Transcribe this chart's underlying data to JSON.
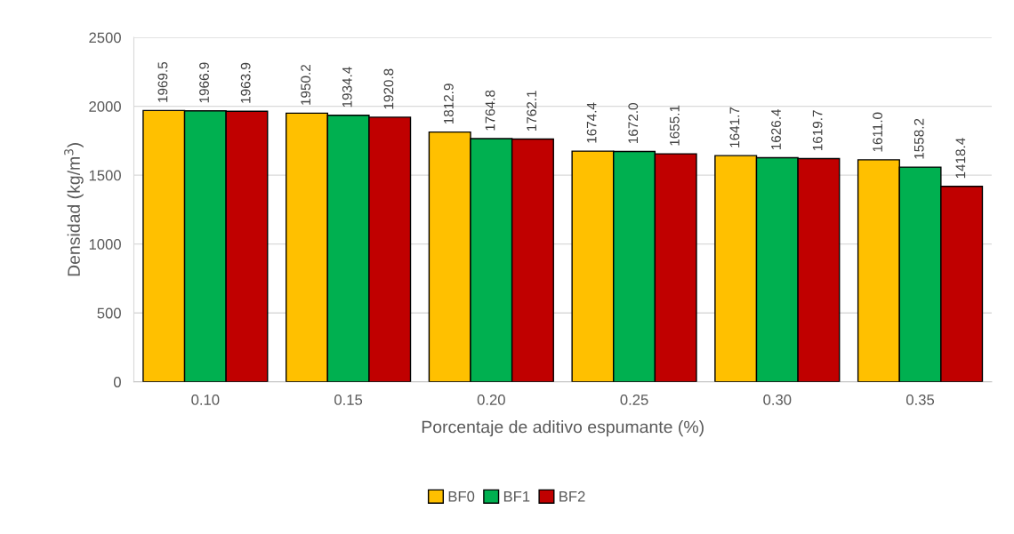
{
  "chart_data": {
    "type": "bar",
    "xlabel": "Porcentaje de aditivo espumante (%)",
    "ylabel": "Densidad (kg/m$^{3}$)",
    "categories": [
      "0.10",
      "0.15",
      "0.20",
      "0.25",
      "0.30",
      "0.35"
    ],
    "series": [
      {
        "name": "BF0",
        "color": "#ffc000",
        "values": [
          1969.5,
          1950.2,
          1812.9,
          1674.4,
          1641.7,
          1611.0
        ],
        "value_labels": [
          "1969.5",
          "1950.2",
          "1812.9",
          "1674.4",
          "1641.7",
          "1611.0"
        ]
      },
      {
        "name": "BF1",
        "color": "#00b050",
        "values": [
          1966.9,
          1934.4,
          1764.8,
          1672.0,
          1626.4,
          1558.2
        ],
        "value_labels": [
          "1966.9",
          "1934.4",
          "1764.8",
          "1672.0",
          "1626.4",
          "1558.2"
        ]
      },
      {
        "name": "BF2",
        "color": "#c00000",
        "values": [
          1963.9,
          1920.8,
          1762.1,
          1655.1,
          1619.7,
          1418.4
        ],
        "value_labels": [
          "1963.9",
          "1920.8",
          "1762.1",
          "1655.1",
          "1619.7",
          "1418.4"
        ]
      }
    ],
    "ylim": [
      0,
      2500
    ],
    "yticks": [
      0,
      500,
      1000,
      1500,
      2000,
      2500
    ],
    "grid": "y",
    "legend": "bottom"
  }
}
